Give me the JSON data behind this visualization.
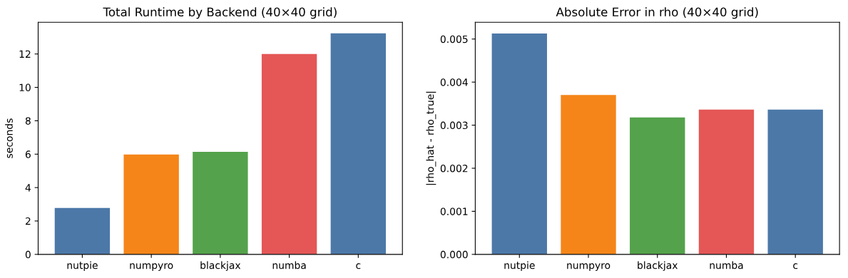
{
  "chart_data": [
    {
      "type": "bar",
      "title": "Total Runtime by Backend (40×40 grid)",
      "ylabel": "seconds",
      "categories": [
        "nutpie",
        "numpyro",
        "blackjax",
        "numba",
        "c"
      ],
      "values": [
        2.78,
        5.98,
        6.14,
        12.0,
        13.24
      ],
      "colors": [
        "#4c78a8",
        "#f58518",
        "#54a24b",
        "#e45756",
        "#4c78a8"
      ],
      "ylim": [
        0,
        13.9
      ],
      "yticks": [
        0,
        2,
        4,
        6,
        8,
        10,
        12
      ],
      "grid": false,
      "legend": false
    },
    {
      "type": "bar",
      "title": "Absolute Error in rho (40×40 grid)",
      "ylabel": "|rho_hat - rho_true|",
      "categories": [
        "nutpie",
        "numpyro",
        "blackjax",
        "numba",
        "c"
      ],
      "values": [
        0.00513,
        0.0037,
        0.00318,
        0.00336,
        0.00336
      ],
      "colors": [
        "#4c78a8",
        "#f58518",
        "#54a24b",
        "#e45756",
        "#4c78a8"
      ],
      "ylim": [
        0,
        0.00539
      ],
      "yticks": [
        {
          "value": 0,
          "label": "0.000"
        },
        {
          "value": 0.001,
          "label": "0.001"
        },
        {
          "value": 0.002,
          "label": "0.002"
        },
        {
          "value": 0.003,
          "label": "0.003"
        },
        {
          "value": 0.004,
          "label": "0.004"
        },
        {
          "value": 0.005,
          "label": "0.005"
        }
      ],
      "grid": false,
      "legend": false
    }
  ]
}
